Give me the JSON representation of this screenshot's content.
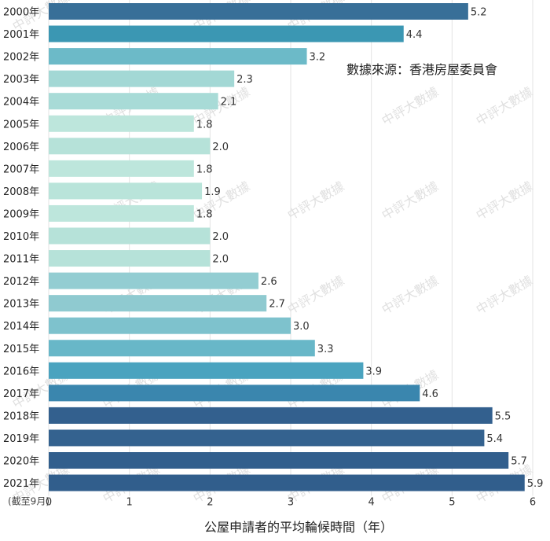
{
  "source_note": "數據來源：香港房屋委員會",
  "watermark_text": "中評大數據",
  "chart_data": {
    "type": "bar",
    "orientation": "horizontal",
    "title": "",
    "xlabel": "公屋申請者的平均輪候時間（年）",
    "ylabel": "",
    "xlim": [
      0,
      6
    ],
    "x_ticks": [
      0,
      1,
      2,
      3,
      4,
      5,
      6
    ],
    "grid": "vertical",
    "categories": [
      "2000年",
      "2001年",
      "2002年",
      "2003年",
      "2004年",
      "2005年",
      "2006年",
      "2007年",
      "2008年",
      "2009年",
      "2010年",
      "2011年",
      "2012年",
      "2013年",
      "2014年",
      "2015年",
      "2016年",
      "2017年",
      "2018年",
      "2019年",
      "2020年",
      "2021年"
    ],
    "category_note": "(截至9月)",
    "values": [
      5.2,
      4.4,
      3.2,
      2.3,
      2.1,
      1.8,
      2.0,
      1.8,
      1.9,
      1.8,
      2.0,
      2.0,
      2.6,
      2.7,
      3.0,
      3.3,
      3.9,
      4.6,
      5.5,
      5.4,
      5.7,
      5.9
    ],
    "value_labels": [
      "5.2",
      "4.4",
      "3.2",
      "2.3",
      "2.1",
      "1.8",
      "2.0",
      "1.8",
      "1.9",
      "1.8",
      "2.0",
      "2.0",
      "2.6",
      "2.7",
      "3.0",
      "3.3",
      "3.9",
      "4.6",
      "5.5",
      "5.4",
      "5.7",
      "5.9"
    ],
    "bar_colors": [
      "#386f98",
      "#3b97b3",
      "#6cbac8",
      "#a3d8d5",
      "#a8dbd7",
      "#bde6dc",
      "#b6e2d9",
      "#bde6dc",
      "#b9e4da",
      "#bde6dc",
      "#b6e2d9",
      "#b6e2d9",
      "#93cdd2",
      "#8fcad0",
      "#7ec2cd",
      "#68b7c8",
      "#4aa3bf",
      "#3a86ae",
      "#33608e",
      "#34628f",
      "#325f8d",
      "#315e8c"
    ]
  }
}
